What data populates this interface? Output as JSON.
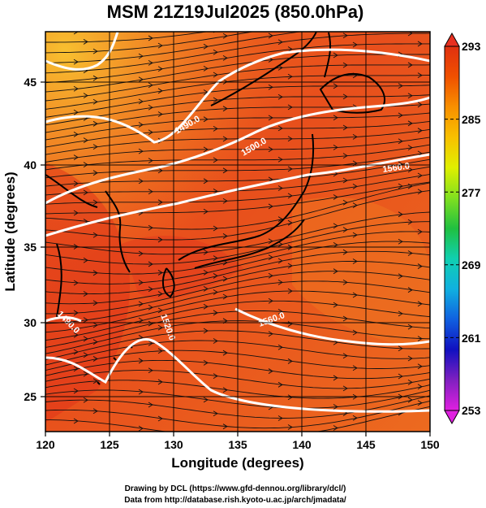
{
  "title": "MSM 21Z19Jul2025 (850.0hPa)",
  "x_axis": {
    "label": "Longitude (degrees)",
    "ticks": [
      "120",
      "125",
      "130",
      "135",
      "140",
      "145",
      "150"
    ],
    "range": [
      120,
      150
    ]
  },
  "y_axis": {
    "label": "Latitude  (degrees)",
    "ticks": [
      "25",
      "30",
      "35",
      "40",
      "45"
    ],
    "range": [
      22.4,
      47.6
    ]
  },
  "colorbar": {
    "ticks": [
      "293",
      "285",
      "277",
      "269",
      "261",
      "253"
    ],
    "range": [
      253,
      293
    ],
    "colors": [
      "#e020e0",
      "#8020c0",
      "#1010c0",
      "#1060e0",
      "#10b0e0",
      "#10d0b0",
      "#20c040",
      "#80e020",
      "#e0f000",
      "#f8c000",
      "#f89000",
      "#f05000",
      "#e03010"
    ]
  },
  "contour_labels": [
    "1490.0",
    "1500.0",
    "1560.0",
    "1560.0",
    "1520.0",
    "1490.0"
  ],
  "field_colors": {
    "land_hot": "#e33a1e",
    "sea_warm": "#f07020",
    "north": "#f8a020"
  },
  "credits": {
    "line1": "Drawing by DCL (https://www.gfd-dennou.org/library/dcl/)",
    "line2": "Data from http://database.rish.kyoto-u.ac.jp/arch/jmadata/"
  }
}
